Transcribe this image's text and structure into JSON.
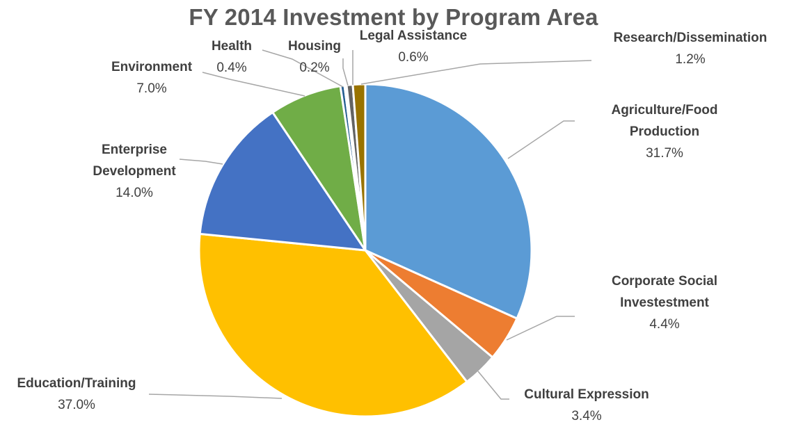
{
  "chart_data": {
    "type": "pie",
    "title": "FY 2014 Investment by Program Area",
    "slices": [
      {
        "label": [
          "Agriculture/Food",
          "Production"
        ],
        "value": 31.7,
        "value_label": "31.7%",
        "color": "#5B9BD5"
      },
      {
        "label": [
          "Corporate Social",
          "Investestment"
        ],
        "value": 4.4,
        "value_label": "4.4%",
        "color": "#ED7D31"
      },
      {
        "label": [
          "Cultural Expression"
        ],
        "value": 3.4,
        "value_label": "3.4%",
        "color": "#A5A5A5"
      },
      {
        "label": [
          "Education/Training"
        ],
        "value": 37.0,
        "value_label": "37.0%",
        "color": "#FFC000"
      },
      {
        "label": [
          "Enterprise",
          "Development"
        ],
        "value": 14.0,
        "value_label": "14.0%",
        "color": "#4472C4"
      },
      {
        "label": [
          "Environment"
        ],
        "value": 7.0,
        "value_label": "7.0%",
        "color": "#70AD47"
      },
      {
        "label": [
          "Health"
        ],
        "value": 0.4,
        "value_label": "0.4%",
        "color": "#255E91"
      },
      {
        "label": [
          "Housing"
        ],
        "value": 0.2,
        "value_label": "0.2%",
        "color": "#9E480E"
      },
      {
        "label": [
          "Legal Assistance"
        ],
        "value": 0.6,
        "value_label": "0.6%",
        "color": "#636363"
      },
      {
        "label": [
          "Research/Dissemination"
        ],
        "value": 1.2,
        "value_label": "1.2%",
        "color": "#997300"
      }
    ],
    "legend": "none",
    "data_labels": "outside-with-leader-lines"
  }
}
